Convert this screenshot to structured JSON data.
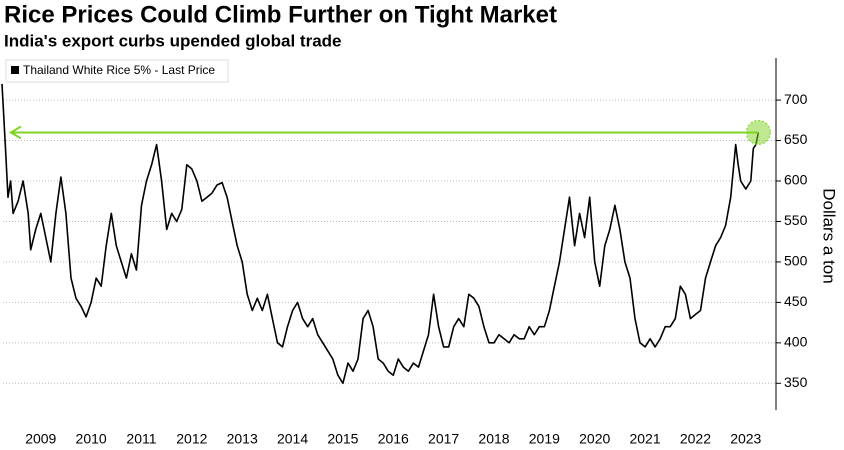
{
  "chart_data": {
    "type": "line",
    "title": "Rice Prices Could Climb Further on Tight Market",
    "subtitle": "India's export curbs upended global trade",
    "y_axis_label": "Dollars a ton",
    "series": [
      {
        "name": "Thailand White Rice 5% - Last Price",
        "color": "#000000",
        "x": [
          2008.73,
          2008.8,
          2008.85,
          2008.9,
          2008.95,
          2009.05,
          2009.15,
          2009.25,
          2009.3,
          2009.4,
          2009.5,
          2009.6,
          2009.7,
          2009.8,
          2009.9,
          2010.0,
          2010.1,
          2010.2,
          2010.3,
          2010.4,
          2010.5,
          2010.6,
          2010.7,
          2010.8,
          2010.9,
          2011.0,
          2011.1,
          2011.2,
          2011.3,
          2011.4,
          2011.5,
          2011.6,
          2011.7,
          2011.8,
          2011.9,
          2012.0,
          2012.1,
          2012.2,
          2012.3,
          2012.4,
          2012.5,
          2012.6,
          2012.7,
          2012.8,
          2012.9,
          2013.0,
          2013.1,
          2013.2,
          2013.3,
          2013.4,
          2013.5,
          2013.6,
          2013.7,
          2013.8,
          2013.9,
          2014.0,
          2014.1,
          2014.2,
          2014.3,
          2014.4,
          2014.5,
          2014.6,
          2014.7,
          2014.8,
          2014.9,
          2015.0,
          2015.1,
          2015.2,
          2015.3,
          2015.4,
          2015.5,
          2015.6,
          2015.7,
          2015.8,
          2015.9,
          2016.0,
          2016.1,
          2016.2,
          2016.3,
          2016.4,
          2016.5,
          2016.6,
          2016.7,
          2016.8,
          2016.9,
          2017.0,
          2017.1,
          2017.2,
          2017.3,
          2017.4,
          2017.5,
          2017.6,
          2017.7,
          2017.8,
          2017.9,
          2018.0,
          2018.1,
          2018.2,
          2018.3,
          2018.4,
          2018.5,
          2018.6,
          2018.7,
          2018.8,
          2018.9,
          2019.0,
          2019.1,
          2019.2,
          2019.3,
          2019.4,
          2019.5,
          2019.6,
          2019.7,
          2019.8,
          2019.9,
          2020.0,
          2020.05,
          2020.1,
          2020.2,
          2020.3,
          2020.4,
          2020.5,
          2020.6,
          2020.7,
          2020.8,
          2020.9,
          2021.0,
          2021.1,
          2021.2,
          2021.3,
          2021.4,
          2021.5,
          2021.6,
          2021.7,
          2021.8,
          2021.9,
          2022.0,
          2022.1,
          2022.2,
          2022.3,
          2022.4,
          2022.5,
          2022.6,
          2022.7,
          2022.8,
          2022.9,
          2023.0,
          2023.1,
          2023.2,
          2023.3,
          2023.35,
          2023.4,
          2023.5,
          2023.6,
          2023.65,
          2023.7,
          2023.75
        ],
        "values": [
          720,
          640,
          580,
          600,
          560,
          575,
          600,
          560,
          515,
          540,
          560,
          530,
          500,
          560,
          605,
          560,
          480,
          455,
          445,
          432,
          450,
          480,
          470,
          520,
          560,
          520,
          500,
          480,
          510,
          490,
          570,
          600,
          620,
          645,
          600,
          540,
          560,
          550,
          565,
          620,
          615,
          600,
          575,
          580,
          585,
          595,
          598,
          580,
          550,
          520,
          500,
          460,
          440,
          455,
          440,
          460,
          430,
          400,
          395,
          420,
          440,
          450,
          430,
          420,
          430,
          410,
          400,
          390,
          380,
          360,
          350,
          375,
          365,
          380,
          430,
          440,
          420,
          380,
          375,
          365,
          360,
          380,
          370,
          365,
          375,
          370,
          390,
          410,
          460,
          420,
          395,
          395,
          420,
          430,
          420,
          460,
          455,
          445,
          420,
          400,
          400,
          410,
          405,
          400,
          410,
          405,
          405,
          420,
          410,
          420,
          420,
          440,
          470,
          500,
          540,
          580,
          550,
          520,
          560,
          530,
          580,
          500,
          470,
          520,
          540,
          570,
          540,
          500,
          480,
          430,
          400,
          395,
          405,
          395,
          405,
          420,
          420,
          430,
          470,
          460,
          430,
          435,
          440,
          480,
          500,
          520,
          530,
          545,
          580,
          645,
          620,
          600,
          590,
          600,
          640,
          645,
          660
        ]
      }
    ],
    "reference_line": {
      "value": 660,
      "color": "#7ed321"
    },
    "xlim": [
      2008.75,
      2024.1
    ],
    "xticks": [
      {
        "value": 2009.5,
        "label": "2009"
      },
      {
        "value": 2010.5,
        "label": "2010"
      },
      {
        "value": 2011.5,
        "label": "2011"
      },
      {
        "value": 2012.5,
        "label": "2012"
      },
      {
        "value": 2013.5,
        "label": "2013"
      },
      {
        "value": 2014.5,
        "label": "2014"
      },
      {
        "value": 2015.5,
        "label": "2015"
      },
      {
        "value": 2016.5,
        "label": "2016"
      },
      {
        "value": 2017.5,
        "label": "2017"
      },
      {
        "value": 2018.5,
        "label": "2018"
      },
      {
        "value": 2019.5,
        "label": "2019"
      },
      {
        "value": 2020.5,
        "label": "2020"
      },
      {
        "value": 2021.5,
        "label": "2021"
      },
      {
        "value": 2022.5,
        "label": "2022"
      },
      {
        "value": 2023.5,
        "label": "2023"
      }
    ],
    "ylim": [
      317,
      752
    ],
    "yticks": [
      350,
      400,
      450,
      500,
      550,
      600,
      650,
      700
    ],
    "grid": true
  }
}
